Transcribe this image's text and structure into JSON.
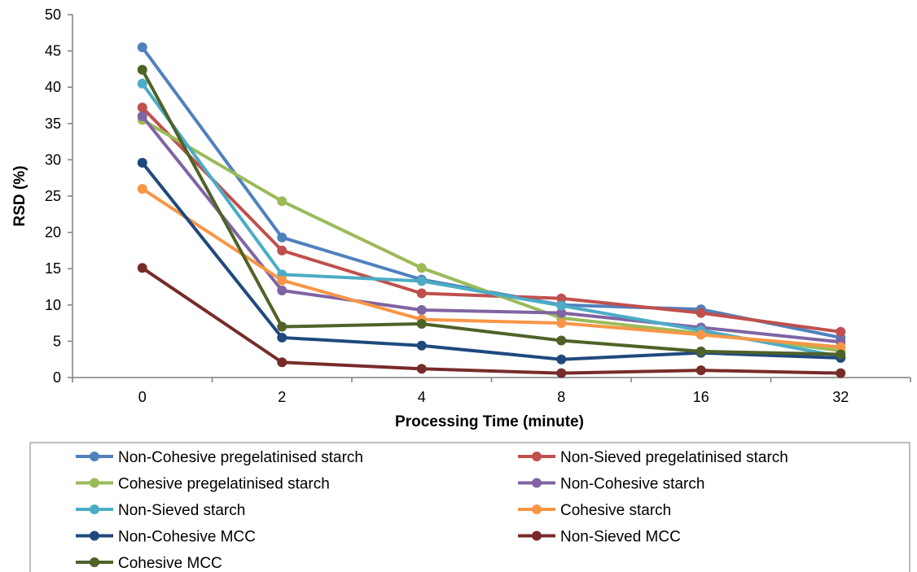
{
  "chart_data": {
    "type": "line",
    "categories": [
      "0",
      "2",
      "4",
      "8",
      "16",
      "32"
    ],
    "xlabel": "Processing Time (minute)",
    "ylabel": "RSD (%)",
    "ylim": [
      0,
      50
    ],
    "yticks": [
      "0",
      "5",
      "10",
      "15",
      "20",
      "25",
      "30",
      "35",
      "40",
      "45",
      "50"
    ],
    "grid": false,
    "legend_position": "bottom",
    "series": [
      {
        "name": "Non-Cohesive pregelatinised starch",
        "color": "#4f81bd",
        "values": [
          45.5,
          19.3,
          13.5,
          10.0,
          9.4,
          5.5
        ]
      },
      {
        "name": "Non-Sieved pregelatinised starch",
        "color": "#c0504d",
        "values": [
          37.2,
          17.5,
          11.6,
          10.9,
          8.9,
          6.3
        ]
      },
      {
        "name": "Cohesive pregelatinised starch",
        "color": "#9bbb59",
        "values": [
          35.5,
          24.3,
          15.1,
          8.2,
          6.1,
          3.7
        ]
      },
      {
        "name": "Non-Cohesive starch",
        "color": "#8064a2",
        "values": [
          36.0,
          12.0,
          9.3,
          8.9,
          6.9,
          4.9
        ]
      },
      {
        "name": "Non-Sieved starch",
        "color": "#4bacc6",
        "values": [
          40.5,
          14.2,
          13.3,
          9.9,
          6.5,
          2.9
        ]
      },
      {
        "name": "Cohesive starch",
        "color": "#f79646",
        "values": [
          26.0,
          13.4,
          8.0,
          7.5,
          5.9,
          4.2
        ]
      },
      {
        "name": "Non-Cohesive MCC",
        "color": "#1f497d",
        "values": [
          29.6,
          5.5,
          4.4,
          2.5,
          3.4,
          2.7
        ]
      },
      {
        "name": "Non-Sieved MCC",
        "color": "#772c2a",
        "values": [
          15.1,
          2.1,
          1.2,
          0.6,
          1.0,
          0.6
        ]
      },
      {
        "name": "Cohesive MCC",
        "color": "#4f6228",
        "values": [
          42.4,
          7.0,
          7.4,
          5.1,
          3.6,
          3.2
        ]
      }
    ]
  }
}
